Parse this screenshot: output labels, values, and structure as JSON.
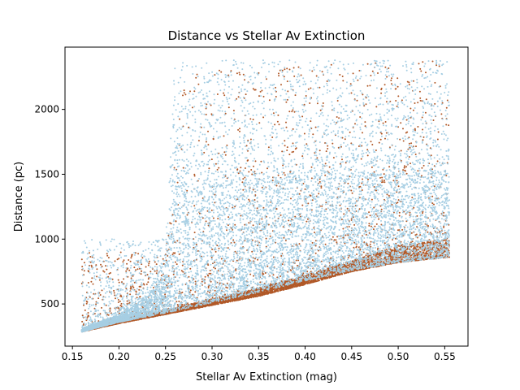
{
  "chart_data": {
    "type": "scatter",
    "title": "Distance vs Stellar Av Extinction",
    "xlabel": "Stellar Av Extinction (mag)",
    "ylabel": "Distance (pc)",
    "xlim": [
      0.142,
      0.575
    ],
    "ylim": [
      175,
      2480
    ],
    "xticks": [
      0.15,
      0.2,
      0.25,
      0.3,
      0.35,
      0.4,
      0.45,
      0.5,
      0.55
    ],
    "xtick_labels": [
      "0.15",
      "0.20",
      "0.25",
      "0.30",
      "0.35",
      "0.40",
      "0.45",
      "0.50",
      "0.55"
    ],
    "yticks": [
      500,
      1000,
      1500,
      2000
    ],
    "ytick_labels": [
      "500",
      "1000",
      "1500",
      "2000"
    ],
    "grid": false,
    "legend": "none",
    "series": [
      {
        "color": "#b15928",
        "point_count": 6000,
        "x_range": [
          0.16,
          0.555
        ],
        "lower_envelope": [
          [
            0.16,
            285
          ],
          [
            0.2,
            350
          ],
          [
            0.25,
            420
          ],
          [
            0.3,
            490
          ],
          [
            0.35,
            560
          ],
          [
            0.4,
            650
          ],
          [
            0.45,
            750
          ],
          [
            0.5,
            820
          ],
          [
            0.555,
            860
          ]
        ],
        "dense_band_top": [
          [
            0.16,
            300
          ],
          [
            0.2,
            380
          ],
          [
            0.25,
            450
          ],
          [
            0.3,
            540
          ],
          [
            0.35,
            620
          ],
          [
            0.4,
            720
          ],
          [
            0.45,
            830
          ],
          [
            0.5,
            950
          ],
          [
            0.555,
            1000
          ]
        ],
        "sparse_max": [
          [
            0.25,
            900
          ],
          [
            0.27,
            2300
          ],
          [
            0.555,
            2380
          ]
        ]
      },
      {
        "color": "#a6cee3",
        "point_count": 9000,
        "x_range": [
          0.16,
          0.555
        ],
        "lower_envelope": [
          [
            0.16,
            285
          ],
          [
            0.2,
            360
          ],
          [
            0.25,
            430
          ],
          [
            0.3,
            510
          ],
          [
            0.35,
            590
          ],
          [
            0.4,
            680
          ],
          [
            0.45,
            760
          ],
          [
            0.5,
            820
          ],
          [
            0.555,
            860
          ]
        ],
        "dense_band_top": [
          [
            0.16,
            310
          ],
          [
            0.2,
            420
          ],
          [
            0.22,
            500
          ],
          [
            0.25,
            700
          ],
          [
            0.26,
            1400
          ],
          [
            0.3,
            1400
          ],
          [
            0.4,
            1450
          ],
          [
            0.5,
            1500
          ],
          [
            0.555,
            1500
          ]
        ],
        "sparse_max": [
          [
            0.25,
            1000
          ],
          [
            0.26,
            2380
          ],
          [
            0.555,
            2380
          ]
        ]
      }
    ]
  }
}
